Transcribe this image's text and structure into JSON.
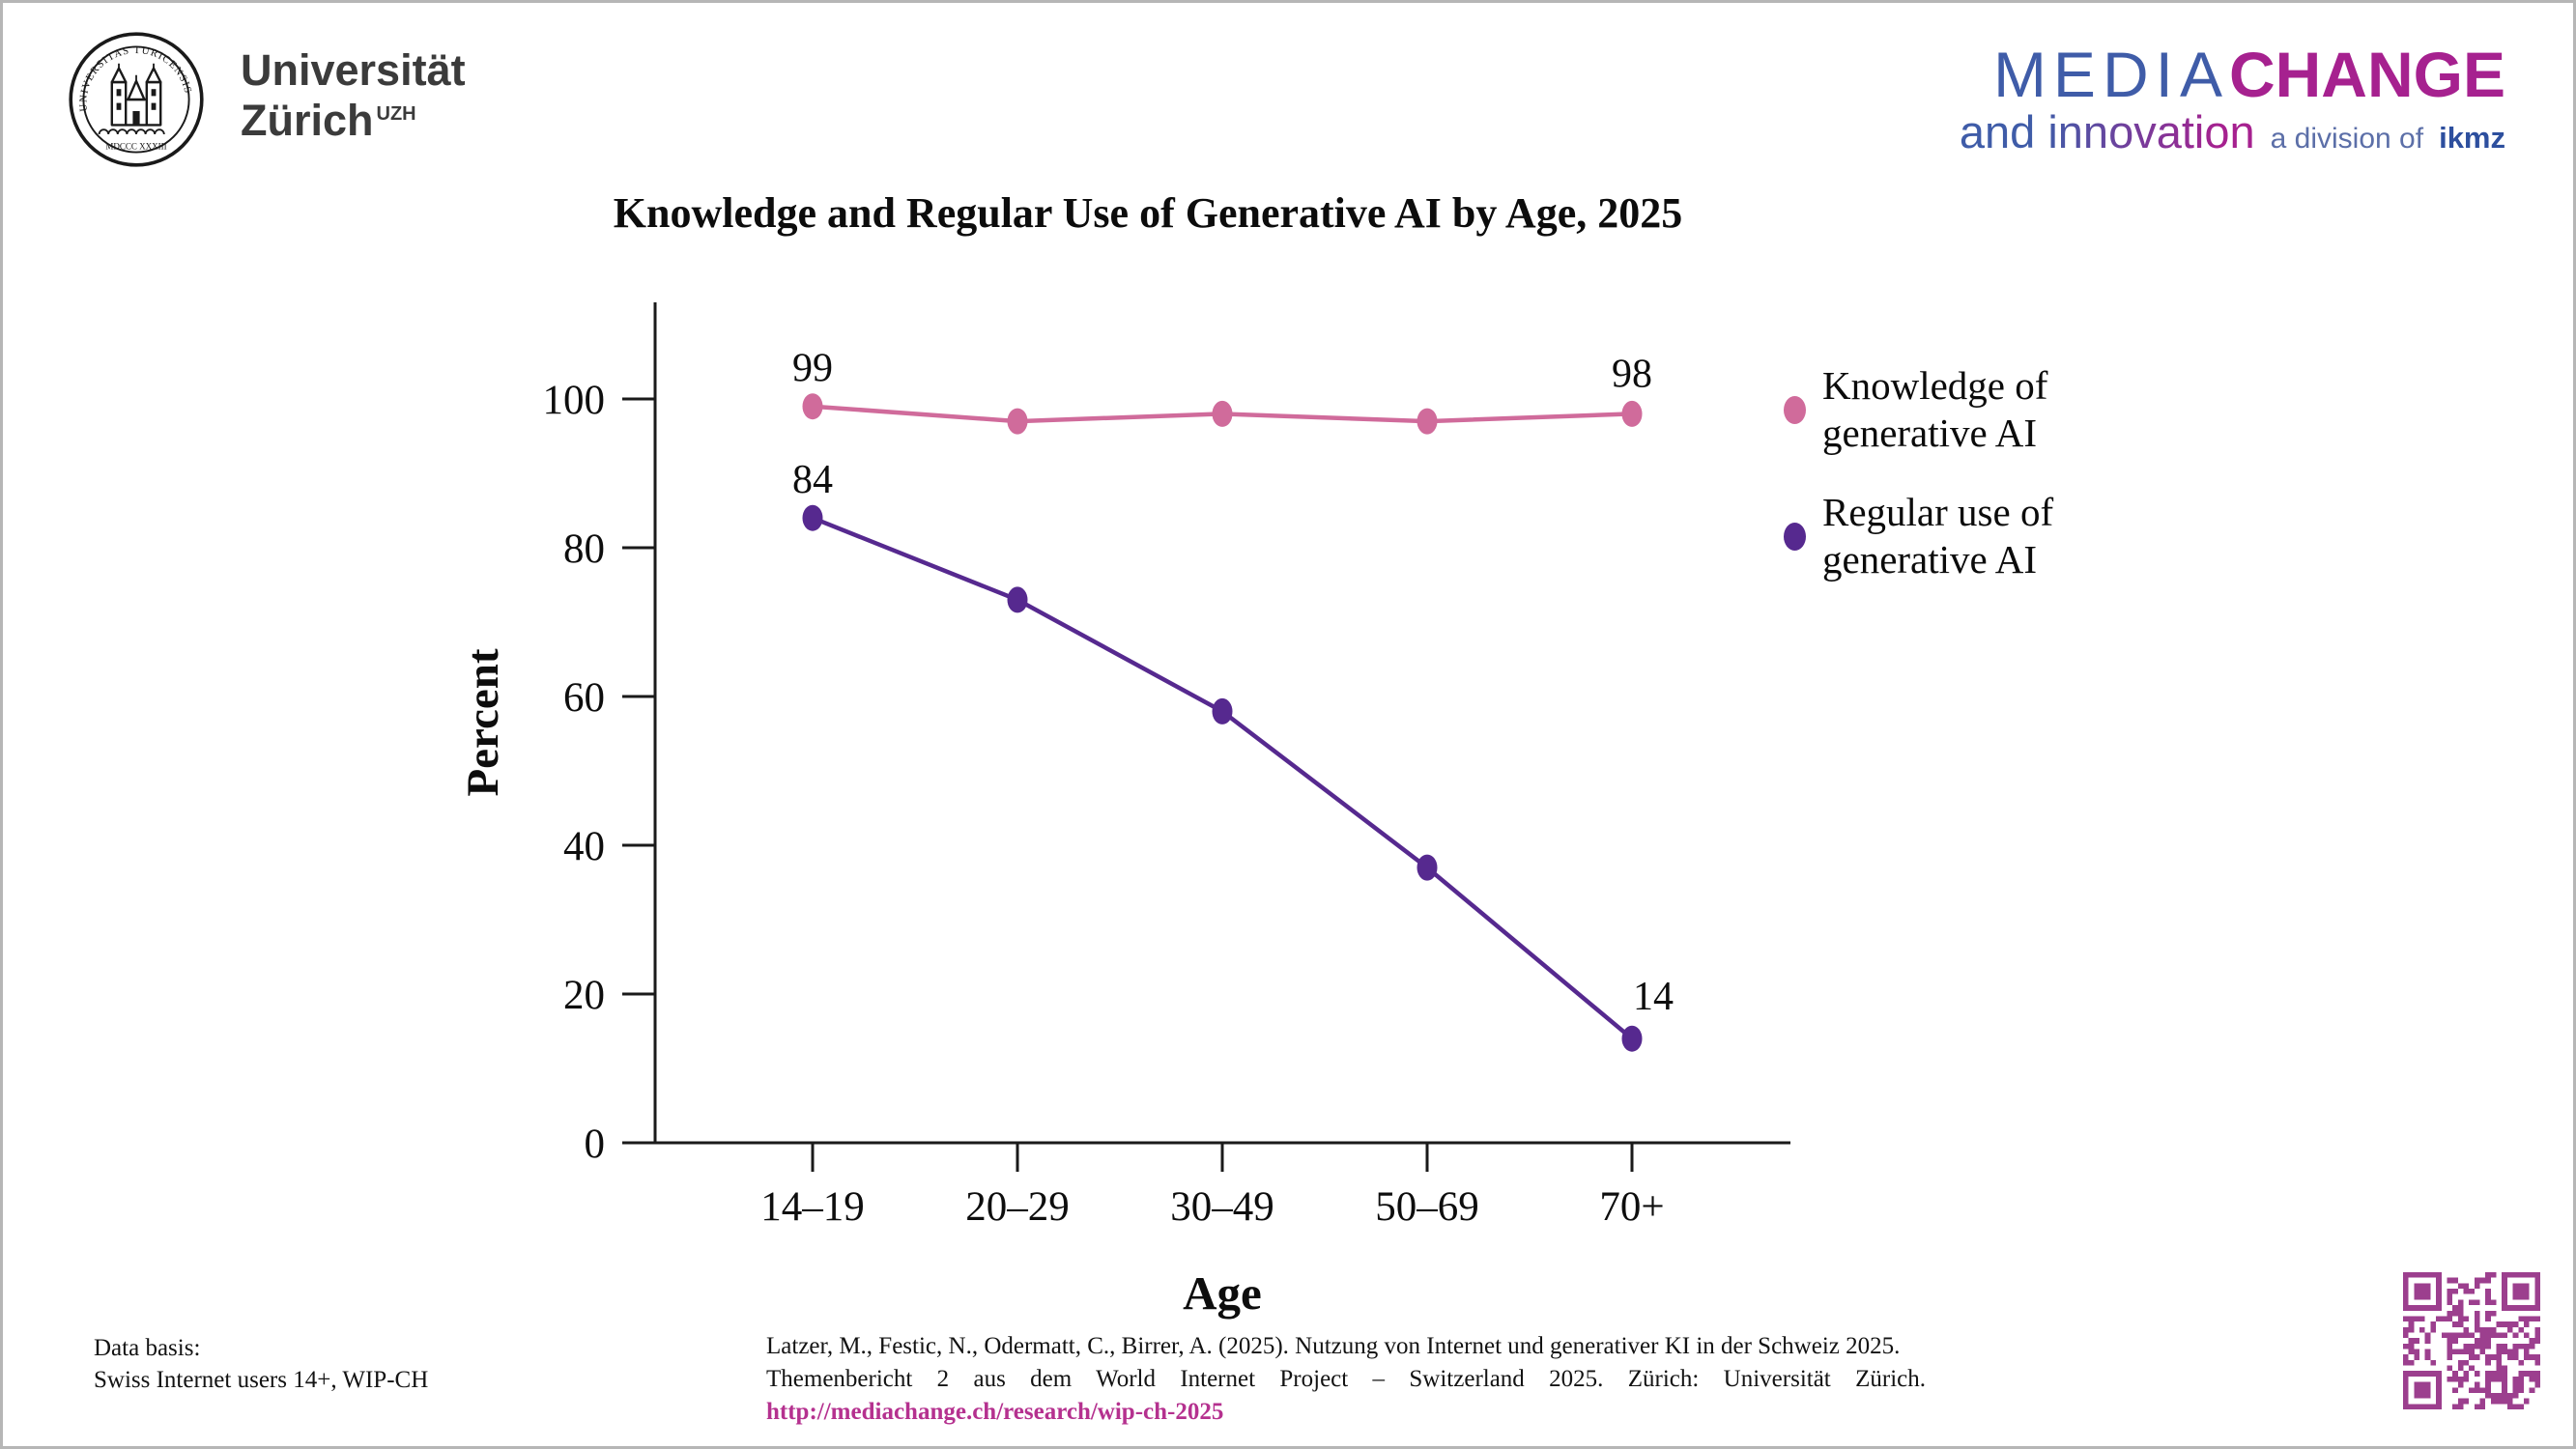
{
  "header": {
    "uzh": {
      "line1": "Universität",
      "line2": "Zürich",
      "sup": "UZH",
      "seal_text_top": "UNIVERSITAS TURICENSIS",
      "seal_text_bottom": "MDCCC XXXIII"
    },
    "mediachange": {
      "media": "MEDIA",
      "change": "CHANGE",
      "and_innovation": "and innovation",
      "division": "a division of",
      "ikmz": "ikmz"
    }
  },
  "chart_data": {
    "type": "line",
    "title": "Knowledge and Regular Use of Generative AI by Age, 2025",
    "xlabel": "Age",
    "ylabel": "Percent",
    "categories": [
      "14–19",
      "20–29",
      "30–49",
      "50–69",
      "70+"
    ],
    "ylim": [
      0,
      100
    ],
    "yticks": [
      0,
      20,
      40,
      60,
      80,
      100
    ],
    "grid": false,
    "legend_position": "right",
    "series": [
      {
        "name": "Knowledge of generative AI",
        "legend_lines": [
          "Knowledge of",
          "generative AI"
        ],
        "color": "#d06b9b",
        "values": [
          99,
          97,
          98,
          97,
          98
        ],
        "point_labels": [
          {
            "index": 0,
            "text": "99",
            "dx": 0,
            "dy": -26
          },
          {
            "index": 4,
            "text": "98",
            "dx": 0,
            "dy": -28
          }
        ]
      },
      {
        "name": "Regular use of generative AI",
        "legend_lines": [
          "Regular use of",
          "generative AI"
        ],
        "color": "#56298f",
        "values": [
          84,
          73,
          58,
          37,
          14
        ],
        "point_labels": [
          {
            "index": 0,
            "text": "84",
            "dx": 0,
            "dy": -26
          },
          {
            "index": 4,
            "text": "14",
            "dx": 22,
            "dy": -30
          }
        ]
      }
    ]
  },
  "footer": {
    "data_basis": [
      "Data basis:",
      "Swiss Internet users 14+, WIP-CH"
    ],
    "citation_line1": "Latzer, M., Festic, N., Odermatt, C., Birrer, A. (2025). Nutzung von Internet und generativer KI in der Schweiz 2025.",
    "citation_line2": "Themenbericht 2 aus dem World Internet Project – Switzerland 2025. Zürich: Universität Zürich.",
    "citation_url": "http://mediachange.ch/research/wip-ch-2025"
  },
  "colors": {
    "knowledge_pink": "#d06b9b",
    "regular_use_purple": "#56298f",
    "media_blue": "#3f5ca8",
    "change_magenta": "#a6218f",
    "division_blue": "#5c6fa8",
    "ikmz_blue": "#2d4f9e",
    "url_magenta": "#b5318f",
    "qr_magenta": "#9c3f8e"
  }
}
